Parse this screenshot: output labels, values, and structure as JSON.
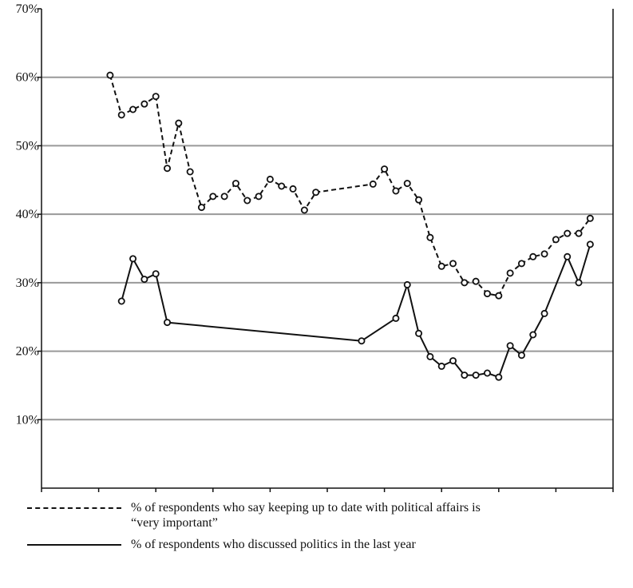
{
  "chart_data": {
    "type": "line",
    "xlim": [
      1960,
      2010
    ],
    "ylim": [
      0,
      70
    ],
    "x_ticks": [
      "1960",
      "1965",
      "1970",
      "1975",
      "1980",
      "1985",
      "1990",
      "1995",
      "2000",
      "2005",
      "2010"
    ],
    "y_ticks": [
      "10%",
      "20%",
      "30%",
      "40%",
      "50%",
      "60%",
      "70%"
    ],
    "grid": "horizontal",
    "legend_placement": "bottom",
    "series": [
      {
        "name": "% of respondents who say keeping up to date with political affairs is “very important”",
        "line_style": "dashed",
        "color": "#111111",
        "points": [
          [
            1966,
            60.3
          ],
          [
            1967,
            54.5
          ],
          [
            1968,
            55.3
          ],
          [
            1969,
            56.1
          ],
          [
            1970,
            57.2
          ],
          [
            1971,
            46.7
          ],
          [
            1972,
            53.3
          ],
          [
            1973,
            46.2
          ],
          [
            1974,
            41.0
          ],
          [
            1975,
            42.6
          ],
          [
            1976,
            42.6
          ],
          [
            1977,
            44.5
          ],
          [
            1978,
            42.0
          ],
          [
            1979,
            42.6
          ],
          [
            1980,
            45.1
          ],
          [
            1981,
            44.1
          ],
          [
            1982,
            43.7
          ],
          [
            1983,
            40.6
          ],
          [
            1984,
            43.2
          ],
          [
            1989,
            44.4
          ],
          [
            1990,
            46.6
          ],
          [
            1991,
            43.4
          ],
          [
            1992,
            44.5
          ],
          [
            1993,
            42.1
          ],
          [
            1994,
            36.6
          ],
          [
            1995,
            32.4
          ],
          [
            1996,
            32.8
          ],
          [
            1997,
            30.0
          ],
          [
            1998,
            30.2
          ],
          [
            1999,
            28.4
          ],
          [
            2000,
            28.1
          ],
          [
            2001,
            31.4
          ],
          [
            2002,
            32.8
          ],
          [
            2003,
            33.8
          ],
          [
            2004,
            34.2
          ],
          [
            2005,
            36.3
          ],
          [
            2006,
            37.2
          ],
          [
            2007,
            37.2
          ],
          [
            2008,
            39.4
          ]
        ]
      },
      {
        "name": "% of respondents who discussed politics in the last year",
        "line_style": "solid",
        "color": "#111111",
        "points": [
          [
            1967,
            27.3
          ],
          [
            1968,
            33.5
          ],
          [
            1969,
            30.5
          ],
          [
            1970,
            31.3
          ],
          [
            1971,
            24.2
          ],
          [
            1988,
            21.5
          ],
          [
            1991,
            24.8
          ],
          [
            1992,
            29.7
          ],
          [
            1993,
            22.6
          ],
          [
            1994,
            19.2
          ],
          [
            1995,
            17.8
          ],
          [
            1996,
            18.6
          ],
          [
            1997,
            16.5
          ],
          [
            1998,
            16.5
          ],
          [
            1999,
            16.8
          ],
          [
            2000,
            16.2
          ],
          [
            2001,
            20.8
          ],
          [
            2002,
            19.4
          ],
          [
            2003,
            22.4
          ],
          [
            2004,
            25.5
          ],
          [
            2006,
            33.8
          ],
          [
            2007,
            30.0
          ],
          [
            2008,
            35.6
          ]
        ]
      }
    ]
  },
  "legend": {
    "dashed_label_line1": "% of respondents who say keeping up to date with political affairs is",
    "dashed_label_line2": "“very important”",
    "solid_label": "% of respondents who discussed politics in the last year"
  }
}
